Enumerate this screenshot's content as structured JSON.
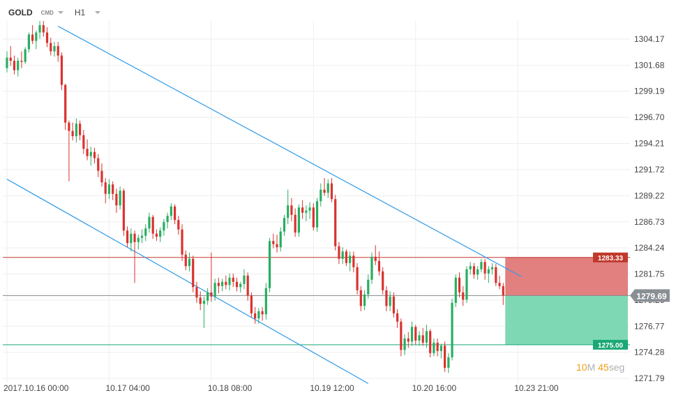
{
  "header": {
    "symbol": "GOLD",
    "instrument_type": "CMD",
    "timeframe": "H1"
  },
  "countdown": {
    "minutes": "10",
    "minutes_unit": "M",
    "seconds": "45",
    "seconds_unit": "seg"
  },
  "colors": {
    "up": "#27ae60",
    "down": "#d9322f",
    "trendline": "#2f9bea",
    "resistance": "#c0392b",
    "support": "#1aa874",
    "current": "#888888",
    "stop_zone": "#e27f7f",
    "target_zone": "#7fd8b4"
  },
  "chart_data": {
    "type": "candlestick",
    "instrument": "GOLD",
    "timeframe": "H1",
    "ylim": [
      1271.0,
      1306.0
    ],
    "y_ticks": [
      1304.17,
      1301.68,
      1299.19,
      1296.7,
      1294.21,
      1291.72,
      1289.22,
      1286.73,
      1284.24,
      1281.75,
      1279.26,
      1276.77,
      1274.28,
      1271.79
    ],
    "y_tick_labels": [
      "1304.17",
      "1301.68",
      "1299.19",
      "1296.70",
      "1294.21",
      "1291.72",
      "1289.22",
      "1286.73",
      "1284.24",
      "1281.75",
      "1279.26",
      "1276.77",
      "1274.28",
      "1271.79"
    ],
    "x_labels": [
      {
        "index": 0,
        "label": "2017.10.16  00:00"
      },
      {
        "index": 28,
        "label": "10.17  04:00"
      },
      {
        "index": 56,
        "label": "10.18  08:00"
      },
      {
        "index": 84,
        "label": "10.19  12:00"
      },
      {
        "index": 112,
        "label": "10.20  16:00"
      },
      {
        "index": 140,
        "label": "10.23  21:00"
      }
    ],
    "candles_ohlc": [
      [
        1301.4,
        1303.0,
        1301.0,
        1302.4
      ],
      [
        1302.4,
        1303.5,
        1301.6,
        1302.1
      ],
      [
        1302.1,
        1302.6,
        1300.8,
        1301.2
      ],
      [
        1301.2,
        1302.4,
        1300.6,
        1302.1
      ],
      [
        1302.1,
        1303.0,
        1301.4,
        1302.0
      ],
      [
        1302.0,
        1303.4,
        1301.8,
        1303.2
      ],
      [
        1303.2,
        1304.8,
        1302.9,
        1304.6
      ],
      [
        1304.6,
        1305.5,
        1303.7,
        1304.0
      ],
      [
        1304.0,
        1305.0,
        1303.2,
        1304.8
      ],
      [
        1304.8,
        1305.9,
        1304.2,
        1305.5
      ],
      [
        1305.5,
        1305.9,
        1304.4,
        1304.8
      ],
      [
        1304.8,
        1305.3,
        1303.4,
        1303.8
      ],
      [
        1303.8,
        1304.3,
        1302.6,
        1303.0
      ],
      [
        1303.0,
        1303.9,
        1302.5,
        1303.5
      ],
      [
        1303.5,
        1303.9,
        1302.0,
        1302.6
      ],
      [
        1302.6,
        1302.9,
        1299.3,
        1299.8
      ],
      [
        1299.8,
        1299.9,
        1295.5,
        1296.2
      ],
      [
        1296.2,
        1296.4,
        1290.6,
        1295.4
      ],
      [
        1295.4,
        1296.2,
        1294.5,
        1294.9
      ],
      [
        1294.9,
        1296.6,
        1294.3,
        1296.1
      ],
      [
        1296.1,
        1296.4,
        1294.5,
        1295.0
      ],
      [
        1295.0,
        1295.5,
        1293.2,
        1293.7
      ],
      [
        1293.7,
        1294.6,
        1292.6,
        1293.0
      ],
      [
        1293.0,
        1293.9,
        1292.1,
        1293.4
      ],
      [
        1293.4,
        1293.8,
        1292.3,
        1292.8
      ],
      [
        1292.8,
        1293.2,
        1291.0,
        1291.6
      ],
      [
        1291.6,
        1292.3,
        1290.1,
        1290.5
      ],
      [
        1290.5,
        1290.9,
        1288.5,
        1289.4
      ],
      [
        1289.4,
        1290.8,
        1288.9,
        1290.3
      ],
      [
        1290.3,
        1290.6,
        1288.8,
        1289.4
      ],
      [
        1289.4,
        1289.9,
        1287.6,
        1288.3
      ],
      [
        1288.3,
        1290.1,
        1287.9,
        1289.7
      ],
      [
        1289.7,
        1289.9,
        1285.4,
        1285.9
      ],
      [
        1285.9,
        1286.3,
        1284.3,
        1284.7
      ],
      [
        1284.7,
        1286.1,
        1283.9,
        1285.6
      ],
      [
        1285.6,
        1285.9,
        1280.9,
        1284.8
      ],
      [
        1284.8,
        1285.5,
        1284.1,
        1285.2
      ],
      [
        1285.2,
        1286.0,
        1284.7,
        1285.4
      ],
      [
        1285.4,
        1286.5,
        1284.9,
        1286.1
      ],
      [
        1286.1,
        1287.6,
        1285.7,
        1287.2
      ],
      [
        1287.2,
        1287.4,
        1285.1,
        1285.6
      ],
      [
        1285.6,
        1286.0,
        1284.9,
        1285.3
      ],
      [
        1285.3,
        1286.2,
        1284.8,
        1285.9
      ],
      [
        1285.9,
        1287.0,
        1285.4,
        1286.7
      ],
      [
        1286.7,
        1287.6,
        1286.1,
        1287.3
      ],
      [
        1287.3,
        1288.5,
        1286.9,
        1288.2
      ],
      [
        1288.2,
        1288.4,
        1286.5,
        1286.9
      ],
      [
        1286.9,
        1287.3,
        1285.5,
        1286.0
      ],
      [
        1286.0,
        1286.5,
        1283.0,
        1283.6
      ],
      [
        1283.6,
        1284.0,
        1282.1,
        1282.5
      ],
      [
        1282.5,
        1283.8,
        1282.0,
        1283.2
      ],
      [
        1283.2,
        1283.5,
        1280.0,
        1280.5
      ],
      [
        1280.5,
        1281.0,
        1279.0,
        1279.5
      ],
      [
        1279.5,
        1280.1,
        1278.3,
        1278.9
      ],
      [
        1278.9,
        1279.6,
        1276.6,
        1279.2
      ],
      [
        1279.2,
        1280.4,
        1278.8,
        1280.0
      ],
      [
        1280.0,
        1283.8,
        1279.1,
        1279.6
      ],
      [
        1279.6,
        1281.3,
        1279.2,
        1280.9
      ],
      [
        1280.9,
        1281.4,
        1279.9,
        1280.6
      ],
      [
        1280.6,
        1281.3,
        1280.1,
        1281.0
      ],
      [
        1281.0,
        1281.6,
        1280.3,
        1280.7
      ],
      [
        1280.7,
        1281.8,
        1280.2,
        1281.4
      ],
      [
        1281.4,
        1281.8,
        1280.5,
        1281.0
      ],
      [
        1281.0,
        1281.4,
        1280.1,
        1280.5
      ],
      [
        1280.5,
        1281.0,
        1280.0,
        1280.8
      ],
      [
        1280.8,
        1282.2,
        1280.3,
        1281.6
      ],
      [
        1281.6,
        1281.9,
        1279.2,
        1279.7
      ],
      [
        1279.7,
        1280.0,
        1277.6,
        1278.0
      ],
      [
        1278.0,
        1278.6,
        1277.0,
        1277.5
      ],
      [
        1277.5,
        1278.5,
        1277.0,
        1278.2
      ],
      [
        1278.2,
        1278.6,
        1277.3,
        1277.9
      ],
      [
        1277.9,
        1280.9,
        1277.4,
        1280.4
      ],
      [
        1280.4,
        1285.2,
        1280.0,
        1284.9
      ],
      [
        1284.9,
        1285.6,
        1284.2,
        1284.6
      ],
      [
        1284.6,
        1285.5,
        1283.8,
        1284.3
      ],
      [
        1284.3,
        1286.2,
        1283.9,
        1285.8
      ],
      [
        1285.8,
        1287.4,
        1285.4,
        1287.1
      ],
      [
        1287.1,
        1289.8,
        1286.5,
        1288.3
      ],
      [
        1288.3,
        1289.0,
        1286.8,
        1287.4
      ],
      [
        1287.4,
        1288.0,
        1285.3,
        1285.7
      ],
      [
        1285.7,
        1288.4,
        1285.3,
        1288.1
      ],
      [
        1288.1,
        1288.8,
        1287.0,
        1287.6
      ],
      [
        1287.6,
        1288.3,
        1286.8,
        1287.8
      ],
      [
        1287.8,
        1288.6,
        1287.0,
        1288.1
      ],
      [
        1288.1,
        1288.5,
        1285.9,
        1286.2
      ],
      [
        1286.2,
        1289.0,
        1285.8,
        1288.7
      ],
      [
        1288.7,
        1290.4,
        1288.2,
        1289.8
      ],
      [
        1289.8,
        1290.9,
        1289.2,
        1289.5
      ],
      [
        1289.5,
        1290.8,
        1289.0,
        1290.4
      ],
      [
        1290.4,
        1290.9,
        1288.6,
        1288.9
      ],
      [
        1288.9,
        1289.3,
        1284.0,
        1284.4
      ],
      [
        1284.4,
        1284.8,
        1282.7,
        1283.2
      ],
      [
        1283.2,
        1284.3,
        1282.7,
        1283.9
      ],
      [
        1283.9,
        1284.1,
        1282.5,
        1282.8
      ],
      [
        1282.8,
        1283.9,
        1282.0,
        1283.5
      ],
      [
        1283.5,
        1283.9,
        1281.9,
        1282.4
      ],
      [
        1282.4,
        1282.8,
        1279.8,
        1280.2
      ],
      [
        1280.2,
        1280.6,
        1278.2,
        1278.7
      ],
      [
        1278.7,
        1280.2,
        1278.3,
        1279.8
      ],
      [
        1279.8,
        1281.7,
        1279.4,
        1281.2
      ],
      [
        1281.2,
        1283.8,
        1280.8,
        1283.4
      ],
      [
        1283.4,
        1284.5,
        1282.6,
        1283.0
      ],
      [
        1283.0,
        1283.9,
        1281.6,
        1282.0
      ],
      [
        1282.0,
        1282.4,
        1279.8,
        1280.2
      ],
      [
        1280.2,
        1280.6,
        1278.2,
        1278.7
      ],
      [
        1278.7,
        1280.1,
        1278.2,
        1279.6
      ],
      [
        1279.6,
        1280.0,
        1277.6,
        1278.0
      ],
      [
        1278.0,
        1278.4,
        1276.6,
        1277.2
      ],
      [
        1277.2,
        1277.5,
        1273.9,
        1274.5
      ],
      [
        1274.5,
        1276.0,
        1274.0,
        1275.6
      ],
      [
        1275.6,
        1276.2,
        1274.7,
        1275.3
      ],
      [
        1275.3,
        1277.2,
        1274.9,
        1276.7
      ],
      [
        1276.7,
        1276.9,
        1275.0,
        1275.4
      ],
      [
        1275.4,
        1276.3,
        1274.9,
        1275.9
      ],
      [
        1275.9,
        1276.6,
        1274.9,
        1275.2
      ],
      [
        1275.2,
        1276.9,
        1274.7,
        1276.3
      ],
      [
        1276.3,
        1276.5,
        1273.8,
        1274.2
      ],
      [
        1274.2,
        1275.6,
        1273.9,
        1275.2
      ],
      [
        1275.2,
        1275.6,
        1273.9,
        1274.4
      ],
      [
        1274.4,
        1275.1,
        1273.7,
        1274.9
      ],
      [
        1274.9,
        1275.3,
        1272.4,
        1272.8
      ],
      [
        1272.8,
        1274.2,
        1272.3,
        1273.8
      ],
      [
        1273.8,
        1279.4,
        1273.5,
        1279.0
      ],
      [
        1279.0,
        1281.7,
        1278.6,
        1281.4
      ],
      [
        1281.4,
        1281.9,
        1279.5,
        1280.0
      ],
      [
        1280.0,
        1280.6,
        1278.7,
        1279.3
      ],
      [
        1279.3,
        1282.5,
        1279.0,
        1282.2
      ],
      [
        1282.2,
        1282.9,
        1281.7,
        1282.5
      ],
      [
        1282.5,
        1282.8,
        1281.3,
        1281.7
      ],
      [
        1281.7,
        1282.5,
        1281.2,
        1282.2
      ],
      [
        1282.2,
        1283.2,
        1281.9,
        1282.9
      ],
      [
        1282.9,
        1283.2,
        1281.2,
        1281.8
      ],
      [
        1281.8,
        1282.5,
        1280.9,
        1282.2
      ],
      [
        1282.2,
        1282.8,
        1281.7,
        1282.4
      ],
      [
        1282.4,
        1282.7,
        1280.6,
        1280.9
      ],
      [
        1280.9,
        1281.6,
        1280.3,
        1280.6
      ],
      [
        1280.6,
        1280.9,
        1278.8,
        1279.7
      ]
    ],
    "trend_channel": {
      "upper": {
        "from": {
          "index": 14,
          "price": 1305.4
        },
        "to": {
          "index": 141,
          "price": 1281.5
        }
      },
      "lower": {
        "from": {
          "index": 0,
          "price": 1290.8
        },
        "to": {
          "index": 99,
          "price": 1271.3
        }
      }
    },
    "levels": [
      {
        "name": "resistance",
        "price": 1283.33,
        "label": "1283.33"
      },
      {
        "name": "current",
        "price": 1279.69,
        "label": "1279.69"
      },
      {
        "name": "support",
        "price": 1275.0,
        "label": "1275.00"
      }
    ]
  }
}
